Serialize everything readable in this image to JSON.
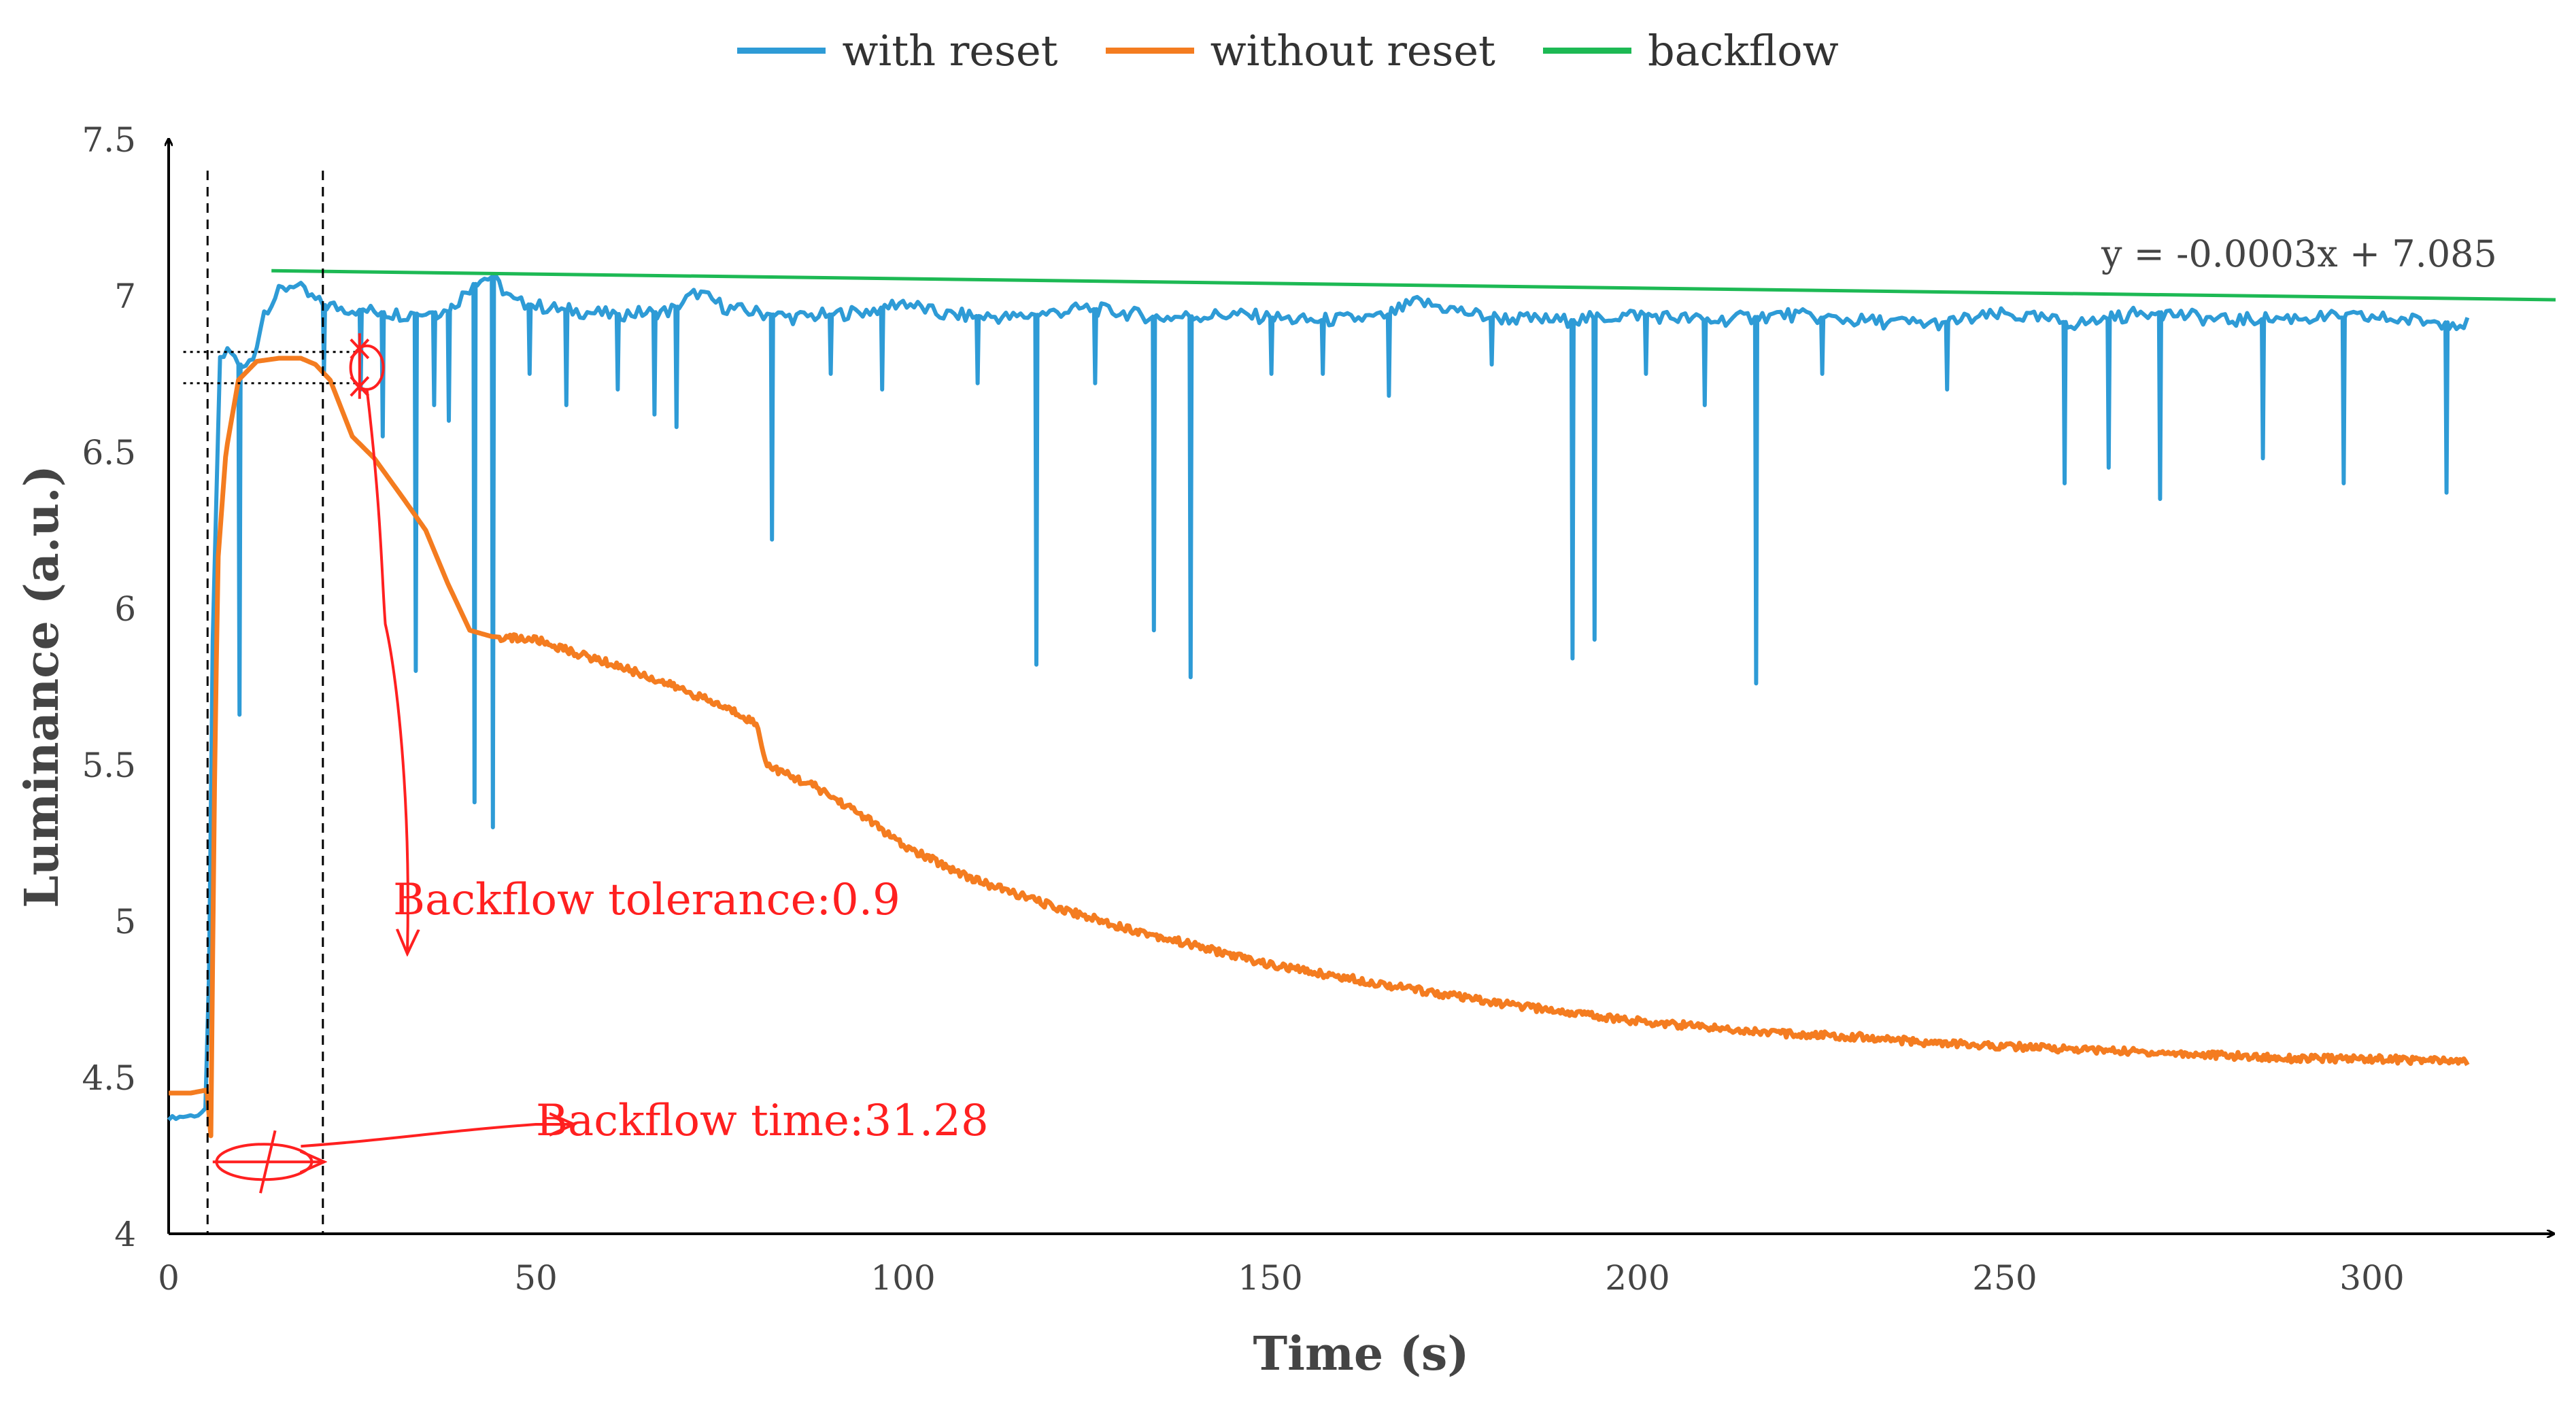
{
  "chart_data": {
    "type": "line",
    "title": "",
    "xlabel": "Time (s)",
    "ylabel": "Luminance (a.u.)",
    "xlim": [
      0,
      325
    ],
    "ylim": [
      4,
      7.5
    ],
    "x_ticks": [
      "0",
      "50",
      "100",
      "150",
      "200",
      "250",
      "300"
    ],
    "y_ticks": [
      "4",
      "4.5",
      "5",
      "5.5",
      "6",
      "6.5",
      "7",
      "7.5"
    ],
    "grid": false,
    "legend_position": "top-center",
    "series": [
      {
        "name": "with reset",
        "color": "#2e9bd6",
        "baseline": [
          [
            0,
            4.37
          ],
          [
            4,
            4.38
          ],
          [
            5.3,
            4.4
          ],
          [
            6,
            5.9
          ],
          [
            7,
            6.8
          ],
          [
            8.5,
            6.82
          ],
          [
            10,
            6.76
          ],
          [
            11.5,
            6.8
          ],
          [
            13,
            6.95
          ],
          [
            15,
            7.01
          ],
          [
            17,
            7.04
          ],
          [
            19,
            7.0
          ],
          [
            21,
            6.97
          ],
          [
            24,
            6.96
          ],
          [
            28,
            6.95
          ],
          [
            32,
            6.94
          ],
          [
            38,
            6.95
          ],
          [
            42,
            7.05
          ],
          [
            44,
            7.06
          ],
          [
            47,
            6.98
          ],
          [
            52,
            6.96
          ],
          [
            60,
            6.94
          ],
          [
            68,
            6.95
          ],
          [
            72,
            7.01
          ],
          [
            76,
            6.96
          ],
          [
            85,
            6.93
          ],
          [
            95,
            6.95
          ],
          [
            100,
            6.98
          ],
          [
            105,
            6.94
          ],
          [
            115,
            6.93
          ],
          [
            125,
            6.96
          ],
          [
            135,
            6.93
          ],
          [
            145,
            6.94
          ],
          [
            155,
            6.92
          ],
          [
            165,
            6.93
          ],
          [
            170,
            6.98
          ],
          [
            180,
            6.93
          ],
          [
            190,
            6.92
          ],
          [
            200,
            6.94
          ],
          [
            210,
            6.92
          ],
          [
            220,
            6.94
          ],
          [
            230,
            6.92
          ],
          [
            240,
            6.91
          ],
          [
            250,
            6.94
          ],
          [
            260,
            6.91
          ],
          [
            270,
            6.95
          ],
          [
            280,
            6.92
          ],
          [
            290,
            6.93
          ],
          [
            300,
            6.93
          ],
          [
            313,
            6.91
          ]
        ],
        "spikes": [
          [
            9.5,
            5.66
          ],
          [
            21,
            6.75
          ],
          [
            26,
            6.7
          ],
          [
            29,
            6.55
          ],
          [
            33.5,
            5.8
          ],
          [
            36,
            6.65
          ],
          [
            38,
            6.6
          ],
          [
            41.5,
            5.38
          ],
          [
            44,
            5.3
          ],
          [
            49,
            6.75
          ],
          [
            54,
            6.65
          ],
          [
            61,
            6.7
          ],
          [
            66,
            6.62
          ],
          [
            69,
            6.58
          ],
          [
            82,
            6.22
          ],
          [
            90,
            6.75
          ],
          [
            97,
            6.7
          ],
          [
            110,
            6.72
          ],
          [
            118,
            5.82
          ],
          [
            126,
            6.72
          ],
          [
            134,
            5.93
          ],
          [
            139,
            5.78
          ],
          [
            150,
            6.75
          ],
          [
            157,
            6.75
          ],
          [
            166,
            6.68
          ],
          [
            180,
            6.78
          ],
          [
            191,
            5.84
          ],
          [
            194,
            5.9
          ],
          [
            201,
            6.75
          ],
          [
            209,
            6.65
          ],
          [
            216,
            5.76
          ],
          [
            225,
            6.75
          ],
          [
            242,
            6.7
          ],
          [
            258,
            6.4
          ],
          [
            264,
            6.45
          ],
          [
            271,
            6.35
          ],
          [
            285,
            6.48
          ],
          [
            296,
            6.4
          ],
          [
            310,
            6.37
          ]
        ]
      },
      {
        "name": "without reset",
        "color": "#f47c20",
        "points": [
          [
            0,
            4.45
          ],
          [
            3,
            4.45
          ],
          [
            5.2,
            4.46
          ],
          [
            5.8,
            4.3
          ],
          [
            6.1,
            5.2
          ],
          [
            6.7,
            6.15
          ],
          [
            7.8,
            6.5
          ],
          [
            9.5,
            6.73
          ],
          [
            12,
            6.79
          ],
          [
            15,
            6.8
          ],
          [
            18,
            6.8
          ],
          [
            20,
            6.78
          ],
          [
            22,
            6.73
          ],
          [
            25,
            6.55
          ],
          [
            28,
            6.48
          ],
          [
            32,
            6.35
          ],
          [
            35,
            6.25
          ],
          [
            38,
            6.08
          ],
          [
            41,
            5.93
          ],
          [
            44,
            5.91
          ],
          [
            50,
            5.9
          ],
          [
            55,
            5.86
          ],
          [
            62,
            5.81
          ],
          [
            70,
            5.74
          ],
          [
            78,
            5.66
          ],
          [
            80,
            5.63
          ],
          [
            81.5,
            5.5
          ],
          [
            84,
            5.47
          ],
          [
            88,
            5.43
          ],
          [
            95,
            5.33
          ],
          [
            100,
            5.24
          ],
          [
            110,
            5.13
          ],
          [
            120,
            5.05
          ],
          [
            130,
            4.98
          ],
          [
            140,
            4.92
          ],
          [
            150,
            4.86
          ],
          [
            160,
            4.82
          ],
          [
            170,
            4.78
          ],
          [
            180,
            4.74
          ],
          [
            190,
            4.71
          ],
          [
            200,
            4.68
          ],
          [
            210,
            4.66
          ],
          [
            220,
            4.64
          ],
          [
            230,
            4.63
          ],
          [
            240,
            4.61
          ],
          [
            250,
            4.6
          ],
          [
            260,
            4.59
          ],
          [
            270,
            4.58
          ],
          [
            280,
            4.57
          ],
          [
            290,
            4.56
          ],
          [
            300,
            4.56
          ],
          [
            313,
            4.55
          ]
        ]
      },
      {
        "name": "backflow",
        "color": "#1db954",
        "points": [
          [
            14,
            7.08
          ],
          [
            325,
            6.987
          ]
        ]
      }
    ],
    "trendline_label": "y = -0.0003x + 7.085",
    "annotations": {
      "tolerance_label": "Backflow tolerance:0.9",
      "time_label": "Backflow time:31.28",
      "color": "#ff2020"
    }
  }
}
